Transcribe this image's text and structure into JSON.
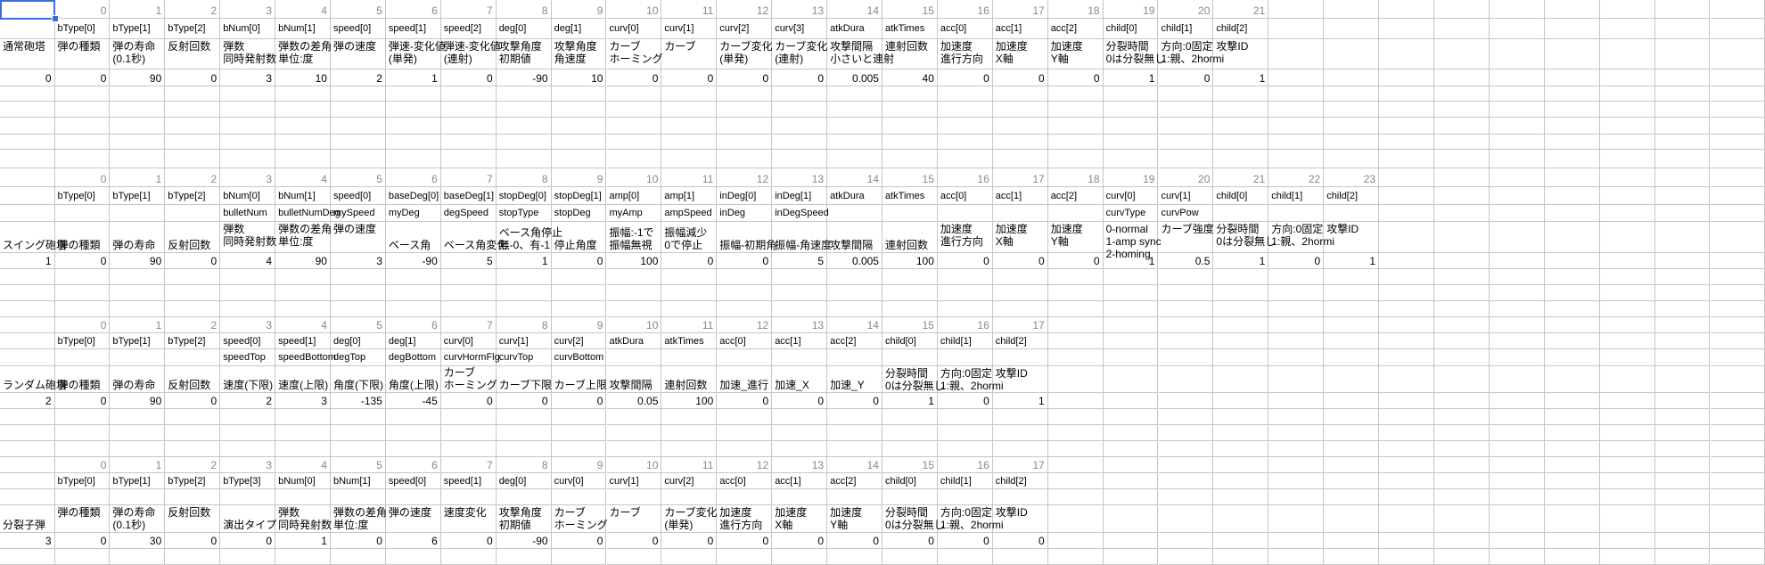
{
  "sheet": {
    "selected_cell": "A1",
    "sections": [
      {
        "title": "通常砲塔",
        "id": "0",
        "indices": [
          "0",
          "1",
          "2",
          "3",
          "4",
          "5",
          "6",
          "7",
          "8",
          "9",
          "10",
          "11",
          "12",
          "13",
          "14",
          "15",
          "16",
          "17",
          "18",
          "19",
          "20",
          "21"
        ],
        "fields": [
          "bType[0]",
          "bType[1]",
          "bType[2]",
          "bNum[0]",
          "bNum[1]",
          "speed[0]",
          "speed[1]",
          "speed[2]",
          "deg[0]",
          "deg[1]",
          "curv[0]",
          "curv[1]",
          "curv[2]",
          "curv[3]",
          "atkDura",
          "atkTimes",
          "acc[0]",
          "acc[1]",
          "acc[2]",
          "child[0]",
          "child[1]",
          "child[2]"
        ],
        "labels": [
          "弾の種類",
          "弾の寿命\n(0.1秒)",
          "反射回数",
          "弾数\n同時発射数",
          "弾数の差角\n単位:度",
          "弾の速度",
          "弾速-変化値\n(単発)",
          "弾速-変化値\n(連射)",
          "攻撃角度\n初期値",
          "攻撃角度\n角速度",
          "カーブ\nホーミング",
          "カーブ",
          "カーブ変化\n(単発)",
          "カーブ変化\n(連射)",
          "攻撃間隔\n小さいと連射",
          "連射回数",
          "加速度\n進行方向",
          "加速度\nX軸",
          "加速度\nY軸",
          "分裂時間\n0は分裂無し",
          "方向:0固定\n1:親、2hormi",
          "攻撃ID"
        ],
        "values": [
          "0",
          "90",
          "0",
          "3",
          "10",
          "2",
          "1",
          "0",
          "-90",
          "10",
          "0",
          "0",
          "0",
          "0",
          "0.005",
          "40",
          "0",
          "0",
          "0",
          "1",
          "0",
          "1"
        ]
      },
      {
        "title": "スイング砲塔",
        "id": "1",
        "indices": [
          "0",
          "1",
          "2",
          "3",
          "4",
          "5",
          "6",
          "7",
          "8",
          "9",
          "10",
          "11",
          "12",
          "13",
          "14",
          "15",
          "16",
          "17",
          "18",
          "19",
          "20",
          "21",
          "22",
          "23"
        ],
        "fields": [
          "bType[0]",
          "bType[1]",
          "bType[2]",
          "bNum[0]",
          "bNum[1]",
          "speed[0]",
          "baseDeg[0]",
          "baseDeg[1]",
          "stopDeg[0]",
          "stopDeg[1]",
          "amp[0]",
          "amp[1]",
          "inDeg[0]",
          "inDeg[1]",
          "atkDura",
          "atkTimes",
          "acc[0]",
          "acc[1]",
          "acc[2]",
          "curv[0]",
          "curv[1]",
          "child[0]",
          "child[1]",
          "child[2]"
        ],
        "names": [
          "",
          "",
          "",
          "bulletNum",
          "bulletNumDeg",
          "mySpeed",
          "myDeg",
          "degSpeed",
          "stopType",
          "stopDeg",
          "myAmp",
          "ampSpeed",
          "inDeg",
          "inDegSpeed",
          "",
          "",
          "",
          "",
          "",
          "curvType",
          "curvPow",
          "",
          "",
          ""
        ],
        "labels": [
          "弾の種類",
          "弾の寿命",
          "反射回数",
          "弾数\n同時発射数",
          "弾数の差角\n単位:度",
          "弾の速度",
          "ベース角",
          "ベース角変化",
          "ベース角停止\n無-0、有-1",
          "停止角度",
          "振幅:-1で\n振幅無視",
          "振幅減少\n0で停止",
          "振幅-初期角",
          "振幅-角速度",
          "攻撃間隔",
          "連射回数",
          "加速度\n進行方向",
          "加速度\nX軸",
          "加速度\nY軸",
          "0-normal\n1-amp sync\n2-homing",
          "カーブ強度",
          "分裂時間\n0は分裂無し",
          "方向:0固定\n1:親、2hormi",
          "攻撃ID"
        ],
        "values": [
          "0",
          "90",
          "0",
          "4",
          "90",
          "3",
          "-90",
          "5",
          "1",
          "0",
          "100",
          "0",
          "0",
          "5",
          "0.005",
          "100",
          "0",
          "0",
          "0",
          "1",
          "0.5",
          "1",
          "0",
          "1"
        ]
      },
      {
        "title": "ランダム砲塔",
        "id": "2",
        "indices": [
          "0",
          "1",
          "2",
          "3",
          "4",
          "5",
          "6",
          "7",
          "8",
          "9",
          "10",
          "11",
          "12",
          "13",
          "14",
          "15",
          "16",
          "17"
        ],
        "fields": [
          "bType[0]",
          "bType[1]",
          "bType[2]",
          "speed[0]",
          "speed[1]",
          "deg[0]",
          "deg[1]",
          "curv[0]",
          "curv[1]",
          "curv[2]",
          "atkDura",
          "atkTimes",
          "acc[0]",
          "acc[1]",
          "acc[2]",
          "child[0]",
          "child[1]",
          "child[2]"
        ],
        "names": [
          "",
          "",
          "",
          "speedTop",
          "speedBottom",
          "degTop",
          "degBottom",
          "curvHormFlg",
          "curvTop",
          "curvBottom",
          "",
          "",
          "",
          "",
          "",
          "",
          "",
          ""
        ],
        "labels": [
          "弾の種類",
          "弾の寿命",
          "反射回数",
          "速度(下限)",
          "速度(上限)",
          "角度(下限)",
          "角度(上限)",
          "カーブ\nホーミング",
          "カーブ下限",
          "カーブ上限",
          "攻撃間隔",
          "連射回数",
          "加速_進行",
          "加速_X",
          "加速_Y",
          "分裂時間\n0は分裂無し",
          "方向:0固定\n1:親、2hormi",
          "攻撃ID"
        ],
        "values": [
          "0",
          "90",
          "0",
          "2",
          "3",
          "-135",
          "-45",
          "0",
          "0",
          "0",
          "0.05",
          "100",
          "0",
          "0",
          "0",
          "1",
          "0",
          "1"
        ]
      },
      {
        "title": "分裂子弾",
        "id": "3",
        "indices": [
          "0",
          "1",
          "2",
          "3",
          "4",
          "5",
          "6",
          "7",
          "8",
          "9",
          "10",
          "11",
          "12",
          "13",
          "14",
          "15",
          "16",
          "17"
        ],
        "fields": [
          "bType[0]",
          "bType[1]",
          "bType[2]",
          "bType[3]",
          "bNum[0]",
          "bNum[1]",
          "speed[0]",
          "speed[1]",
          "deg[0]",
          "curv[0]",
          "curv[1]",
          "curv[2]",
          "acc[0]",
          "acc[1]",
          "acc[2]",
          "child[0]",
          "child[1]",
          "child[2]"
        ],
        "names": [
          "",
          "",
          "",
          "",
          "",
          "",
          "",
          "",
          "",
          "",
          "",
          "",
          "",
          "",
          "",
          "",
          "",
          ""
        ],
        "labels": [
          "弾の種類",
          "弾の寿命\n(0.1秒)",
          "反射回数",
          "演出タイプ",
          "弾数\n同時発射数",
          "弾数の差角\n単位:度",
          "弾の速度",
          "速度変化",
          "攻撃角度\n初期値",
          "カーブ\nホーミング",
          "カーブ",
          "カーブ変化\n(単発)",
          "加速度\n進行方向",
          "加速度\nX軸",
          "加速度\nY軸",
          "分裂時間\n0は分裂無し",
          "方向:0固定\n1:親、2hormi",
          "攻撃ID"
        ],
        "values": [
          "0",
          "30",
          "0",
          "0",
          "1",
          "0",
          "6",
          "0",
          "-90",
          "0",
          "0",
          "0",
          "0",
          "0",
          "0",
          "0",
          "0",
          "0"
        ]
      }
    ]
  }
}
